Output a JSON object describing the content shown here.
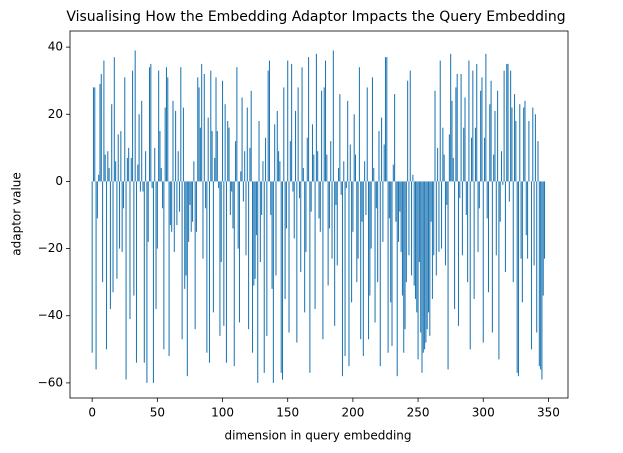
{
  "chart_data": {
    "type": "bar",
    "title": "Visualising How the Embedding Adaptor Impacts the Query Embedding",
    "xlabel": "dimension in query embedding",
    "ylabel": "adaptor value",
    "color": "#1f77b4",
    "xlim": [
      -17,
      365
    ],
    "ylim": [
      -64.5,
      44.8
    ],
    "xticks": [
      0,
      50,
      100,
      150,
      200,
      250,
      300,
      350
    ],
    "yticks": [
      {
        "value": -60,
        "label": "−60"
      },
      {
        "value": -40,
        "label": "−40"
      },
      {
        "value": -20,
        "label": "−20"
      },
      0,
      20,
      40
    ],
    "x": [
      0,
      1,
      2,
      3,
      4,
      5,
      6,
      7,
      8,
      9,
      10,
      11,
      12,
      13,
      14,
      15,
      16,
      17,
      18,
      19,
      20,
      21,
      22,
      23,
      24,
      25,
      26,
      27,
      28,
      29,
      30,
      31,
      32,
      33,
      34,
      35,
      36,
      37,
      38,
      39,
      40,
      41,
      42,
      43,
      44,
      45,
      46,
      47,
      48,
      49,
      50,
      51,
      52,
      53,
      54,
      55,
      56,
      57,
      58,
      59,
      60,
      61,
      62,
      63,
      64,
      65,
      66,
      67,
      68,
      69,
      70,
      71,
      72,
      73,
      74,
      75,
      76,
      77,
      78,
      79,
      80,
      81,
      82,
      83,
      84,
      85,
      86,
      87,
      88,
      89,
      90,
      91,
      92,
      93,
      94,
      95,
      96,
      97,
      98,
      99,
      100,
      101,
      102,
      103,
      104,
      105,
      106,
      107,
      108,
      109,
      110,
      111,
      112,
      113,
      114,
      115,
      116,
      117,
      118,
      119,
      120,
      121,
      122,
      123,
      124,
      125,
      126,
      127,
      128,
      129,
      130,
      131,
      132,
      133,
      134,
      135,
      136,
      137,
      138,
      139,
      140,
      141,
      142,
      143,
      144,
      145,
      146,
      147,
      148,
      149,
      150,
      151,
      152,
      153,
      154,
      155,
      156,
      157,
      158,
      159,
      160,
      161,
      162,
      163,
      164,
      165,
      166,
      167,
      168,
      169,
      170,
      171,
      172,
      173,
      174,
      175,
      176,
      177,
      178,
      179,
      180,
      181,
      182,
      183,
      184,
      185,
      186,
      187,
      188,
      189,
      190,
      191,
      192,
      193,
      194,
      195,
      196,
      197,
      198,
      199,
      200,
      201,
      202,
      203,
      204,
      205,
      206,
      207,
      208,
      209,
      210,
      211,
      212,
      213,
      214,
      215,
      216,
      217,
      218,
      219,
      220,
      221,
      222,
      223,
      224,
      225,
      226,
      227,
      228,
      229,
      230,
      231,
      232,
      233,
      234,
      235,
      236,
      237,
      238,
      239,
      240,
      241,
      242,
      243,
      244,
      245,
      246,
      247,
      248,
      249,
      250,
      251,
      252,
      253,
      254,
      255,
      256,
      257,
      258,
      259,
      260,
      261,
      262,
      263,
      264,
      265,
      266,
      267,
      268,
      269,
      270,
      271,
      272,
      273,
      274,
      275,
      276,
      277,
      278,
      279,
      280,
      281,
      282,
      283,
      284,
      285,
      286,
      287,
      288,
      289,
      290,
      291,
      292,
      293,
      294,
      295,
      296,
      297,
      298,
      299,
      300,
      301,
      302,
      303,
      304,
      305,
      306,
      307,
      308,
      309,
      310,
      311,
      312,
      313,
      314,
      315,
      316,
      317,
      318,
      319,
      320,
      321,
      322,
      323,
      324,
      325,
      326,
      327,
      328,
      329,
      330,
      331,
      332,
      333,
      334,
      335,
      336,
      337,
      338,
      339,
      340,
      341,
      342,
      343,
      344,
      345,
      346,
      347
    ],
    "values": [
      -51,
      28,
      28,
      -56,
      -11,
      2,
      29,
      32,
      -30,
      36,
      8,
      -50,
      9,
      4,
      -38,
      23,
      -33,
      37,
      6,
      -29,
      14,
      -20,
      15,
      -21,
      -8,
      31,
      -59,
      7,
      10,
      -41,
      7,
      33,
      -34,
      39,
      -54,
      5,
      20,
      -3,
      24,
      -3,
      -54,
      9,
      -60,
      -18,
      34,
      35,
      -2,
      -60,
      10,
      -38,
      -20,
      33,
      15,
      4,
      -8,
      -50,
      22,
      34,
      31,
      -52,
      -13,
      -15,
      24,
      -21,
      21,
      -13,
      9,
      -9,
      34,
      -47,
      22,
      -32,
      -28,
      -58,
      -18,
      -7,
      -15,
      -12,
      6,
      -44,
      -15,
      31,
      28,
      16,
      35,
      -23,
      32,
      -8,
      -51,
      19,
      -54,
      33,
      15,
      -39,
      7,
      31,
      15,
      -2,
      -46,
      -24,
      30,
      -43,
      23,
      -54,
      18,
      16,
      -10,
      -3,
      -14,
      -55,
      12,
      34,
      -20,
      -42,
      3,
      25,
      -6,
      9,
      -22,
      22,
      -44,
      10,
      27,
      -51,
      -31,
      -29,
      -16,
      -60,
      18,
      -24,
      -10,
      6,
      -57,
      13,
      -46,
      33,
      36,
      -10,
      -32,
      -60,
      17,
      -28,
      21,
      9,
      6,
      -57,
      -59,
      28,
      -35,
      -14,
      36,
      -45,
      12,
      35,
      -3,
      -17,
      21,
      -48,
      28,
      -5,
      -27,
      34,
      4,
      -39,
      -21,
      13,
      37,
      -57,
      -9,
      17,
      8,
      -38,
      38,
      9,
      -11,
      -15,
      27,
      -47,
      28,
      36,
      8,
      -31,
      -14,
      12,
      -23,
      39,
      -43,
      -7,
      -25,
      4,
      26,
      -4,
      -58,
      6,
      -52,
      -2,
      24,
      -55,
      11,
      -36,
      -15,
      20,
      8,
      -30,
      -23,
      34,
      -47,
      -12,
      -52,
      6,
      -10,
      28,
      -47,
      -34,
      -20,
      31,
      4,
      -42,
      -8,
      -30,
      15,
      -55,
      19,
      -18,
      11,
      37,
      37,
      -51,
      -11,
      -36,
      -49,
      5,
      26,
      -12,
      -58,
      -18,
      -9,
      -21,
      -34,
      -51,
      -44,
      -30,
      30,
      -22,
      33,
      -28,
      2,
      -31,
      -35,
      -39,
      -53,
      -24,
      -45,
      -57,
      -51,
      -50,
      -48,
      -44,
      -39,
      -46,
      -12,
      -35,
      -22,
      27,
      -28,
      10,
      -21,
      36,
      -20,
      16,
      8,
      -25,
      -7,
      -56,
      14,
      38,
      24,
      7,
      -38,
      28,
      32,
      -43,
      -5,
      32,
      -22,
      16,
      25,
      -10,
      -30,
      36,
      -50,
      13,
      33,
      -35,
      16,
      35,
      -21,
      -8,
      27,
      31,
      -48,
      13,
      38,
      -11,
      -33,
      23,
      30,
      -45,
      8,
      21,
      -22,
      27,
      -53,
      -12,
      9,
      -1,
      33,
      -27,
      35,
      35,
      -6,
      33,
      22,
      -30,
      26,
      18,
      -57,
      -58,
      23,
      -23,
      -36,
      22,
      24,
      -16,
      -23,
      18,
      0,
      -50,
      22,
      -25,
      20,
      -45,
      12,
      -55,
      -56,
      -59,
      -34,
      -23
    ]
  }
}
